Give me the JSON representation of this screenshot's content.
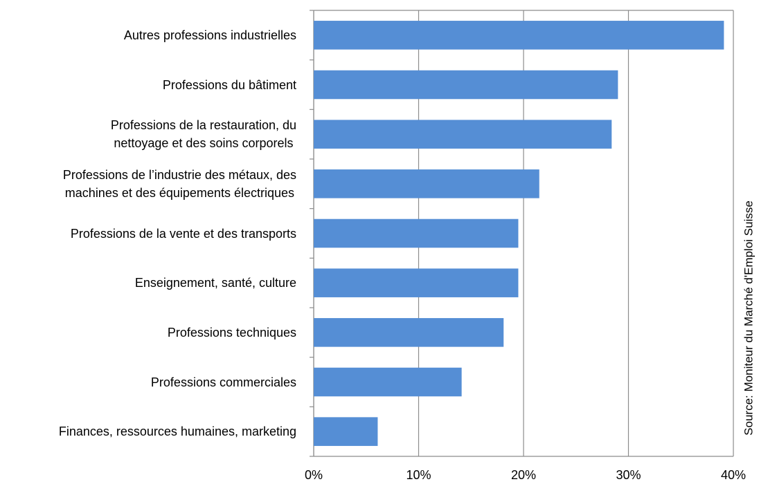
{
  "chart_data": {
    "type": "bar",
    "orientation": "horizontal",
    "categories": [
      "Autres professions  industrielles",
      "Professions du bâtiment",
      "Professions de la restauration, du\nnettoyage et des soins corporels",
      "Professions de l’industrie  des métaux, des\nmachines et des équipements électriques",
      "Professions de la vente et des transports",
      "Enseignement, santé, culture",
      "Professions techniques",
      "Professions commerciales",
      "Finances, ressources humaines, marketing"
    ],
    "values": [
      39.1,
      29.0,
      28.4,
      21.5,
      19.5,
      19.5,
      18.1,
      14.1,
      6.1
    ],
    "color": "#558ed5",
    "xlim": [
      0,
      40
    ],
    "xticks": [
      {
        "value": 0,
        "label": "0%"
      },
      {
        "value": 10,
        "label": "10%"
      },
      {
        "value": 20,
        "label": "20%"
      },
      {
        "value": 30,
        "label": "30%"
      },
      {
        "value": 40,
        "label": "40%"
      }
    ],
    "grid": true,
    "source": "Source: Moniteur du Marché d'Emploi Suisse"
  }
}
